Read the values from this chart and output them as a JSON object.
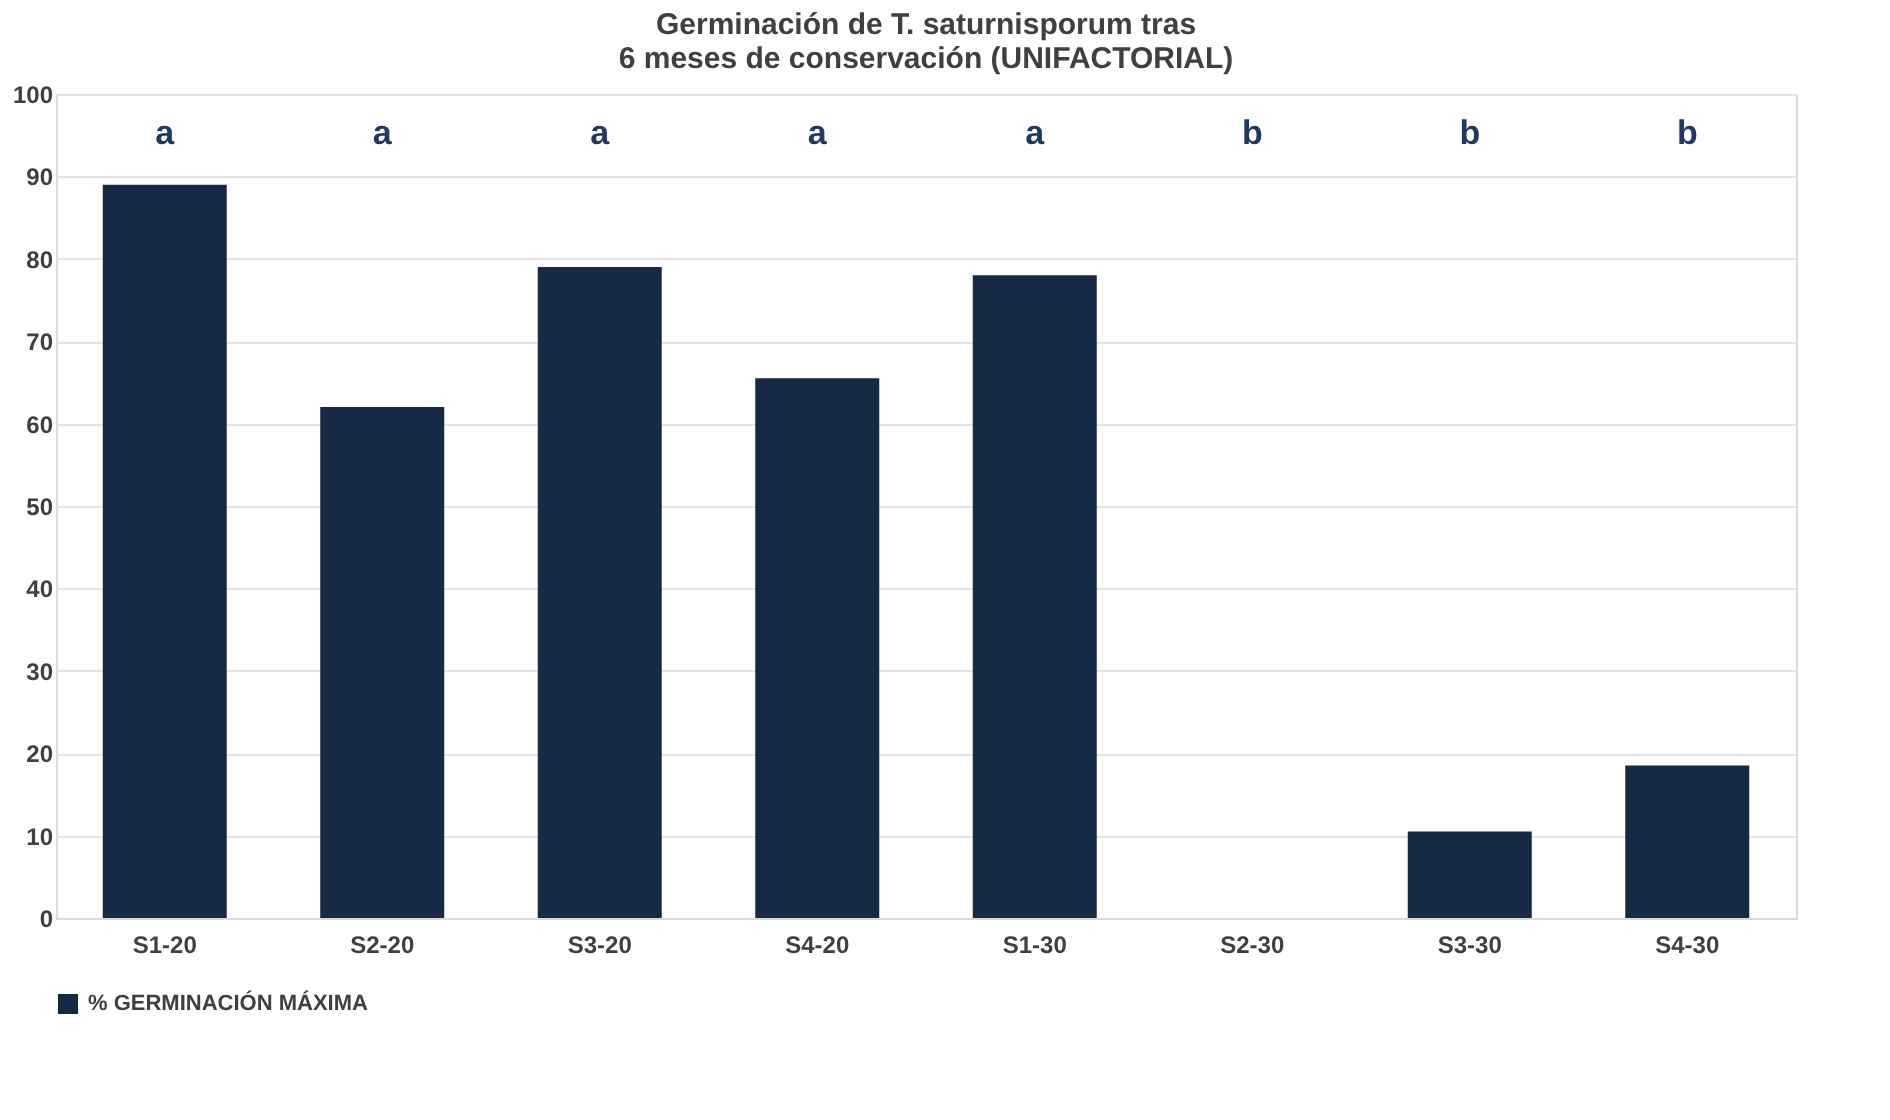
{
  "chart_data": {
    "type": "bar",
    "title": "Germinación de T. saturnisporum tras\n6 meses de conservación (UNIFACTORIAL)",
    "categories": [
      "S1-20",
      "S2-20",
      "S3-20",
      "S4-20",
      "S1-30",
      "S2-30",
      "S3-30",
      "S4-30"
    ],
    "series": [
      {
        "name": "% GERMINACIÓN MÁXIMA",
        "color": "#172a45",
        "values": [
          89,
          62,
          79,
          65.5,
          78,
          0,
          10.5,
          18.5
        ]
      }
    ],
    "ylim": [
      0,
      100
    ],
    "yticks": [
      0,
      10,
      20,
      30,
      40,
      50,
      60,
      70,
      80,
      90,
      100
    ],
    "grid": "y",
    "legend": "bottom",
    "annotations": [
      "a",
      "a",
      "a",
      "a",
      "a",
      "b",
      "b",
      "b"
    ]
  }
}
